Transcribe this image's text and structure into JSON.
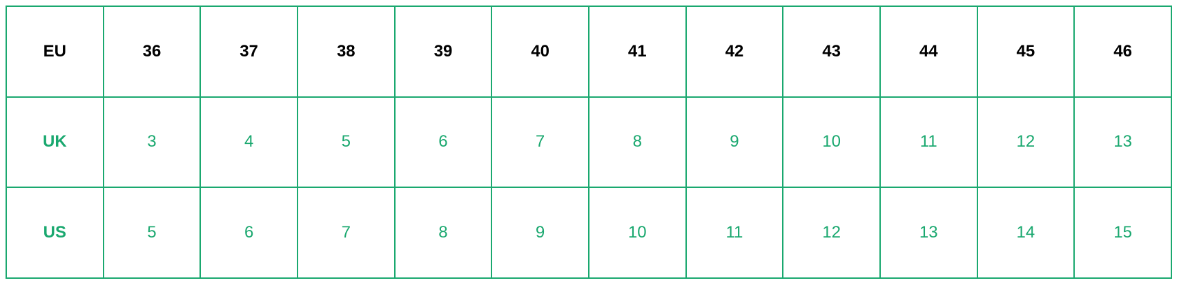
{
  "colors": {
    "border": "#1aa86f",
    "accent_text": "#1aa86f",
    "header_text": "#000000"
  },
  "size_table": {
    "rows": [
      {
        "label": "EU",
        "values": [
          "36",
          "37",
          "38",
          "39",
          "40",
          "41",
          "42",
          "43",
          "44",
          "45",
          "46"
        ]
      },
      {
        "label": "UK",
        "values": [
          "3",
          "4",
          "5",
          "6",
          "7",
          "8",
          "9",
          "10",
          "11",
          "12",
          "13"
        ]
      },
      {
        "label": "US",
        "values": [
          "5",
          "6",
          "7",
          "8",
          "9",
          "10",
          "11",
          "12",
          "13",
          "14",
          "15"
        ]
      }
    ]
  }
}
